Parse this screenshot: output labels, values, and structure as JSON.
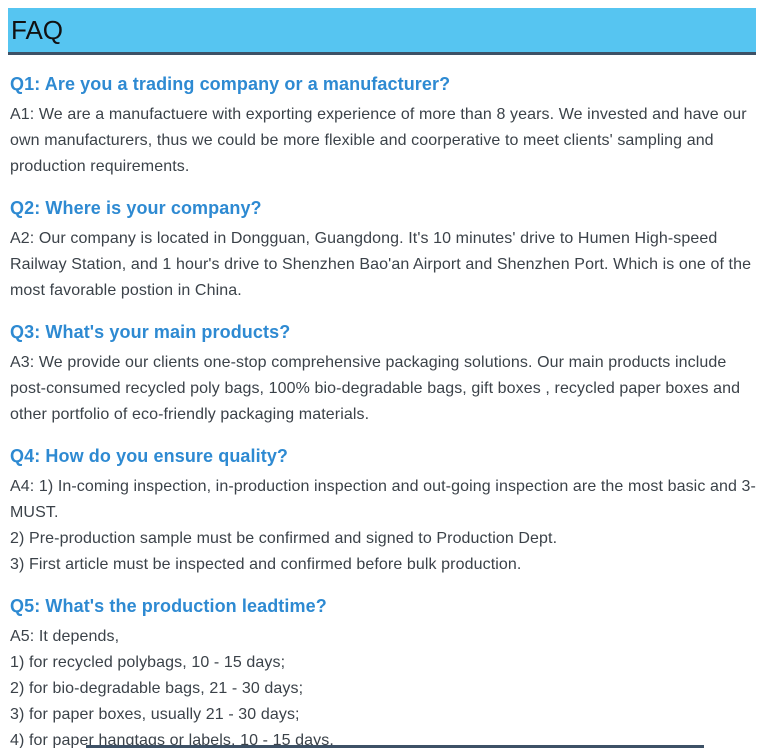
{
  "header": {
    "title": "FAQ"
  },
  "colors": {
    "header_bg": "#56C5F1",
    "header_border": "#3D5166",
    "header_text": "#111111",
    "question_blue": "#2E8AD2",
    "answer_text": "#3B4249"
  },
  "faq": {
    "items": [
      {
        "question": "Q1: Are you a trading company or a manufacturer?",
        "answer_lines": [
          "A1: We are a manufactuere with exporting experience of more than 8 years. We invested and have our own manufacturers, thus we could be more flexible and coorperative to meet clients' sampling and production requirements."
        ]
      },
      {
        "question": "Q2: Where is your company?",
        "answer_lines": [
          "A2: Our company is located in Dongguan, Guangdong. It's 10 minutes' drive to Humen High-speed Railway Station, and 1 hour's drive to Shenzhen Bao'an Airport and Shenzhen Port. Which is one of the most favorable postion in China."
        ]
      },
      {
        "question": "Q3: What's your main products?",
        "answer_lines": [
          "A3: We provide our clients one-stop comprehensive packaging solutions. Our main products include post-consumed recycled poly bags, 100% bio-degradable bags, gift boxes , recycled paper boxes and other portfolio of eco-friendly packaging materials."
        ]
      },
      {
        "question": "Q4: How do you ensure quality?",
        "answer_lines": [
          "A4: 1) In-coming inspection, in-production inspection and out-going inspection are the most basic and 3-MUST.",
          "2) Pre-production sample must be confirmed and signed to Production Dept.",
          "3) First article must be inspected and confirmed before bulk production."
        ]
      },
      {
        "question": "Q5: What's the production leadtime?",
        "answer_lines": [
          "A5: It depends,",
          "1) for recycled polybags, 10 - 15 days;",
          "2) for bio-degradable bags, 21 - 30 days;",
          "3) for paper boxes, usually 21 - 30 days;",
          "4) for paper hangtags or labels, 10 - 15 days."
        ]
      }
    ]
  }
}
